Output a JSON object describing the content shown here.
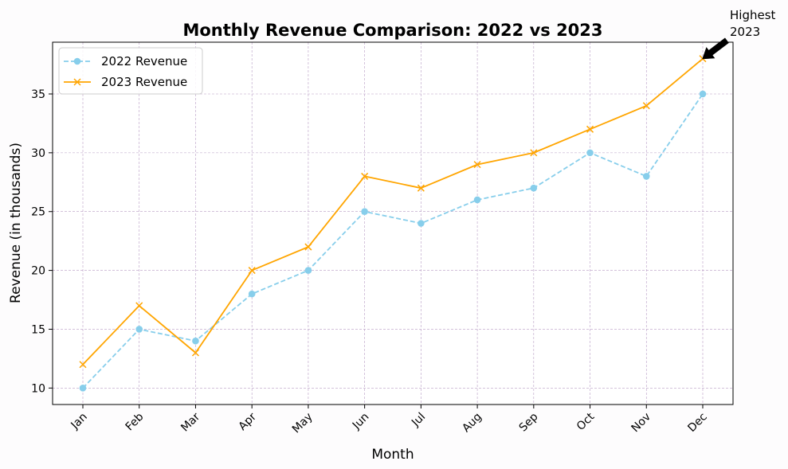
{
  "chart_data": {
    "type": "line",
    "title": "Monthly Revenue Comparison: 2022 vs 2023",
    "xlabel": "Month",
    "ylabel": "Revenue (in thousands)",
    "categories": [
      "Jan",
      "Feb",
      "Mar",
      "Apr",
      "May",
      "Jun",
      "Jul",
      "Aug",
      "Sep",
      "Oct",
      "Nov",
      "Dec"
    ],
    "ylim": [
      8.6,
      39.4
    ],
    "yticks": [
      "10",
      "15",
      "20",
      "25",
      "30",
      "35"
    ],
    "grid": true,
    "legend_position": "top-left",
    "series": [
      {
        "name": "2022 Revenue",
        "values": [
          10,
          15,
          14,
          18,
          20,
          25,
          24,
          26,
          27,
          30,
          28,
          35
        ],
        "color": "#87ceeb",
        "line_style": "dashed",
        "marker": "circle"
      },
      {
        "name": "2023 Revenue",
        "values": [
          12,
          17,
          13,
          20,
          22,
          28,
          27,
          29,
          30,
          32,
          34,
          38
        ],
        "color": "#ffa500",
        "line_style": "solid",
        "marker": "x"
      }
    ],
    "annotation": {
      "text_line1": "Highest",
      "text_line2": "2023",
      "target_category": "Dec",
      "target_value": 38
    },
    "grid_color": "#b89cc4"
  }
}
